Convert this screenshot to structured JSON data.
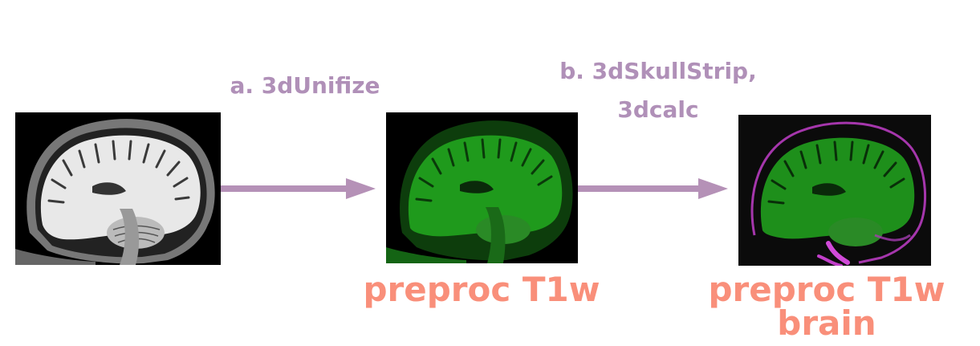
{
  "steps": [
    {
      "label": "a. 3dUnifize"
    },
    {
      "label_line1": "b. 3dSkullStrip,",
      "label_line2": "3dcalc"
    }
  ],
  "images": [
    {
      "name": "input-t1w-scan",
      "icon": "sagittal-mri-grayscale"
    },
    {
      "name": "preproc-t1w-scan",
      "icon": "sagittal-mri-green",
      "caption": "preproc T1w"
    },
    {
      "name": "preproc-t1w-brain-scan",
      "icon": "sagittal-mri-green-magenta",
      "caption_line1": "preproc T1w",
      "caption_line2": "brain"
    }
  ],
  "colors": {
    "step_label": "#b090b8",
    "arrow": "#b591b7",
    "output_label": "#f98f7a",
    "scan_green": "#1f9a1c",
    "scan_magenta": "#c13ec9"
  }
}
